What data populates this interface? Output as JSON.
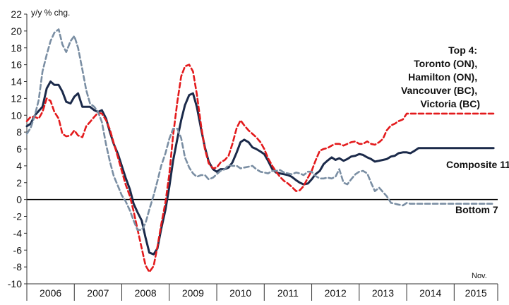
{
  "chart_data": {
    "type": "line",
    "title": "",
    "ylabel": "y/y % chg.",
    "xlabel": "",
    "ylim": [
      -10,
      22
    ],
    "yticks": [
      22,
      20,
      18,
      16,
      14,
      12,
      10,
      8,
      6,
      4,
      2,
      0,
      -2,
      -4,
      -6,
      -8,
      -10
    ],
    "xlim": [
      2006.0,
      2015.917
    ],
    "year_labels": [
      "2006",
      "2007",
      "2008",
      "2009",
      "2010",
      "2011",
      "2012",
      "2013",
      "2014",
      "2015"
    ],
    "end_note": "Nov.",
    "zero_line": true,
    "grid": false,
    "annotations": [
      {
        "lines": [
          "Top 4:",
          "Toronto (ON),",
          "Hamilton (ON),",
          "Vancouver (BC),",
          "Victoria (BC)"
        ],
        "series": "Top 4"
      },
      {
        "lines": [
          "Composite 11"
        ],
        "series": "Composite 11"
      },
      {
        "lines": [
          "Bottom 7"
        ],
        "series": "Bottom 7"
      }
    ],
    "series": [
      {
        "name": "Composite 11",
        "color": "#1b2a4a",
        "style": "solid",
        "x": [
          2006.0,
          2006.08,
          2006.17,
          2006.25,
          2006.33,
          2006.42,
          2006.5,
          2006.58,
          2006.67,
          2006.75,
          2006.83,
          2006.92,
          2007.0,
          2007.08,
          2007.17,
          2007.25,
          2007.33,
          2007.42,
          2007.5,
          2007.58,
          2007.67,
          2007.75,
          2007.83,
          2007.92,
          2008.0,
          2008.08,
          2008.17,
          2008.25,
          2008.33,
          2008.42,
          2008.5,
          2008.58,
          2008.67,
          2008.75,
          2008.83,
          2008.92,
          2009.0,
          2009.08,
          2009.17,
          2009.25,
          2009.33,
          2009.42,
          2009.5,
          2009.58,
          2009.67,
          2009.75,
          2009.83,
          2009.92,
          2010.0,
          2010.08,
          2010.17,
          2010.25,
          2010.33,
          2010.42,
          2010.5,
          2010.58,
          2010.67,
          2010.75,
          2010.83,
          2010.92,
          2011.0,
          2011.08,
          2011.17,
          2011.25,
          2011.33,
          2011.42,
          2011.5,
          2011.58,
          2011.67,
          2011.75,
          2011.83,
          2011.92,
          2012.0,
          2012.08,
          2012.17,
          2012.25,
          2012.33,
          2012.42,
          2012.5,
          2012.58,
          2012.67,
          2012.75,
          2012.83,
          2012.92,
          2013.0,
          2013.08,
          2013.17,
          2013.25,
          2013.33,
          2013.42,
          2013.5,
          2013.58,
          2013.67,
          2013.75,
          2013.83,
          2013.92,
          2014.0,
          2014.08,
          2014.17,
          2014.25,
          2014.33,
          2014.42,
          2014.5,
          2014.58,
          2014.67,
          2014.75,
          2014.83,
          2014.92,
          2015.0,
          2015.08,
          2015.17,
          2015.25,
          2015.33,
          2015.42,
          2015.5,
          2015.58,
          2015.67,
          2015.75,
          2015.83
        ],
        "y": [
          8.7,
          9.0,
          10.0,
          10.5,
          11.0,
          13.2,
          14.0,
          13.6,
          13.6,
          12.8,
          11.6,
          11.4,
          12.2,
          12.6,
          11.0,
          11.0,
          11.0,
          10.6,
          10.4,
          10.6,
          9.6,
          8.0,
          6.6,
          5.4,
          4.0,
          2.6,
          1.2,
          -0.5,
          -1.5,
          -2.5,
          -4.5,
          -6.3,
          -6.5,
          -5.8,
          -3.5,
          -1.2,
          1.5,
          4.6,
          7.2,
          9.4,
          11.2,
          12.4,
          12.6,
          11.0,
          8.4,
          6.2,
          4.5,
          3.6,
          3.3,
          3.6,
          3.6,
          3.8,
          4.4,
          5.6,
          6.8,
          7.1,
          6.8,
          6.2,
          6.0,
          5.7,
          5.4,
          4.6,
          3.6,
          3.2,
          3.1,
          3.0,
          2.9,
          2.7,
          2.3,
          2.0,
          1.8,
          1.9,
          2.4,
          3.0,
          3.4,
          4.2,
          4.6,
          5.0,
          4.7,
          4.9,
          4.6,
          4.8,
          5.1,
          5.2,
          5.4,
          5.3,
          5.0,
          4.8,
          4.5,
          4.6,
          4.7,
          4.8,
          5.1,
          5.2,
          5.5,
          5.6,
          5.6,
          5.5,
          5.8,
          6.1,
          6.1,
          6.1,
          6.1,
          6.1,
          6.1,
          6.1,
          6.1,
          6.1,
          6.1,
          6.1,
          6.1,
          6.1,
          6.1,
          6.1,
          6.1,
          6.1,
          6.1,
          6.1,
          6.1
        ]
      },
      {
        "name": "Top 4",
        "color": "#e31a1c",
        "style": "dashed",
        "x": [
          2006.0,
          2006.08,
          2006.17,
          2006.25,
          2006.33,
          2006.42,
          2006.5,
          2006.58,
          2006.67,
          2006.75,
          2006.83,
          2006.92,
          2007.0,
          2007.08,
          2007.17,
          2007.25,
          2007.33,
          2007.42,
          2007.5,
          2007.58,
          2007.67,
          2007.75,
          2007.83,
          2007.92,
          2008.0,
          2008.08,
          2008.17,
          2008.25,
          2008.33,
          2008.42,
          2008.5,
          2008.58,
          2008.67,
          2008.75,
          2008.83,
          2008.92,
          2009.0,
          2009.08,
          2009.17,
          2009.25,
          2009.33,
          2009.42,
          2009.5,
          2009.58,
          2009.67,
          2009.75,
          2009.83,
          2009.92,
          2010.0,
          2010.08,
          2010.17,
          2010.25,
          2010.33,
          2010.42,
          2010.5,
          2010.58,
          2010.67,
          2010.75,
          2010.83,
          2010.92,
          2011.0,
          2011.08,
          2011.17,
          2011.25,
          2011.33,
          2011.42,
          2011.5,
          2011.58,
          2011.67,
          2011.75,
          2011.83,
          2011.92,
          2012.0,
          2012.08,
          2012.17,
          2012.25,
          2012.33,
          2012.42,
          2012.5,
          2012.58,
          2012.67,
          2012.75,
          2012.83,
          2012.92,
          2013.0,
          2013.08,
          2013.17,
          2013.25,
          2013.33,
          2013.42,
          2013.5,
          2013.58,
          2013.67,
          2013.75,
          2013.83,
          2013.92,
          2014.0,
          2014.08,
          2014.17,
          2014.25,
          2014.33,
          2014.42,
          2014.5,
          2014.58,
          2014.67,
          2014.75,
          2014.83,
          2014.92,
          2015.0,
          2015.08,
          2015.17,
          2015.25,
          2015.33,
          2015.42,
          2015.5,
          2015.58,
          2015.67,
          2015.75,
          2015.83
        ],
        "y": [
          9.3,
          9.8,
          9.8,
          9.6,
          10.4,
          12.0,
          11.7,
          10.4,
          9.6,
          7.8,
          7.5,
          7.6,
          8.2,
          7.6,
          7.4,
          8.7,
          9.2,
          9.8,
          10.3,
          10.2,
          9.4,
          8.3,
          6.7,
          5.0,
          3.4,
          1.8,
          0.4,
          -1.4,
          -3.5,
          -5.8,
          -7.8,
          -8.6,
          -7.9,
          -5.6,
          -3.0,
          -0.3,
          3.0,
          7.6,
          11.6,
          14.6,
          15.8,
          16.0,
          15.2,
          12.5,
          8.8,
          6.0,
          4.3,
          3.7,
          3.8,
          4.4,
          4.7,
          5.2,
          6.6,
          8.5,
          9.4,
          8.8,
          8.2,
          7.8,
          7.4,
          6.8,
          6.0,
          4.9,
          4.0,
          3.3,
          2.7,
          2.2,
          1.9,
          1.5,
          1.0,
          1.1,
          1.6,
          2.6,
          3.4,
          4.6,
          5.8,
          6.0,
          6.1,
          6.4,
          6.6,
          6.6,
          6.4,
          6.6,
          6.8,
          6.9,
          6.6,
          6.6,
          6.9,
          6.6,
          6.5,
          6.8,
          7.2,
          8.2,
          8.8,
          9.0,
          9.3,
          9.5,
          10.2,
          10.2,
          10.2,
          10.2,
          10.2,
          10.2,
          10.2,
          10.2,
          10.2,
          10.2,
          10.2,
          10.2,
          10.2,
          10.2,
          10.2,
          10.2,
          10.2,
          10.2,
          10.2,
          10.2,
          10.2,
          10.2,
          10.2
        ]
      },
      {
        "name": "Bottom 7",
        "color": "#7a8ea3",
        "style": "dashed",
        "x": [
          2006.0,
          2006.08,
          2006.17,
          2006.25,
          2006.33,
          2006.42,
          2006.5,
          2006.58,
          2006.67,
          2006.75,
          2006.83,
          2006.92,
          2007.0,
          2007.08,
          2007.17,
          2007.25,
          2007.33,
          2007.42,
          2007.5,
          2007.58,
          2007.67,
          2007.75,
          2007.83,
          2007.92,
          2008.0,
          2008.08,
          2008.17,
          2008.25,
          2008.33,
          2008.42,
          2008.5,
          2008.58,
          2008.67,
          2008.75,
          2008.83,
          2008.92,
          2009.0,
          2009.08,
          2009.17,
          2009.25,
          2009.33,
          2009.42,
          2009.5,
          2009.58,
          2009.67,
          2009.75,
          2009.83,
          2009.92,
          2010.0,
          2010.08,
          2010.17,
          2010.25,
          2010.33,
          2010.42,
          2010.5,
          2010.58,
          2010.67,
          2010.75,
          2010.83,
          2010.92,
          2011.0,
          2011.08,
          2011.17,
          2011.25,
          2011.33,
          2011.42,
          2011.5,
          2011.58,
          2011.67,
          2011.75,
          2011.83,
          2011.92,
          2012.0,
          2012.08,
          2012.17,
          2012.25,
          2012.33,
          2012.42,
          2012.5,
          2012.58,
          2012.67,
          2012.75,
          2012.83,
          2012.92,
          2013.0,
          2013.08,
          2013.17,
          2013.25,
          2013.33,
          2013.42,
          2013.5,
          2013.58,
          2013.67,
          2013.75,
          2013.83,
          2013.92,
          2014.0,
          2014.08,
          2014.17,
          2014.25,
          2014.33,
          2014.42,
          2014.5,
          2014.58,
          2014.67,
          2014.75,
          2014.83,
          2014.92,
          2015.0,
          2015.08,
          2015.17,
          2015.25,
          2015.33,
          2015.42,
          2015.5,
          2015.58,
          2015.67,
          2015.75,
          2015.83
        ],
        "y": [
          7.8,
          8.5,
          10.0,
          11.8,
          15.2,
          17.2,
          18.8,
          19.8,
          20.2,
          18.4,
          17.5,
          18.8,
          19.4,
          18.0,
          15.4,
          13.0,
          11.4,
          11.0,
          10.4,
          9.2,
          6.5,
          4.5,
          2.8,
          1.6,
          0.5,
          -0.2,
          -1.3,
          -2.5,
          -3.6,
          -3.6,
          -2.8,
          -1.2,
          0.5,
          2.2,
          4.0,
          5.5,
          7.2,
          8.4,
          8.4,
          7.3,
          5.0,
          3.8,
          3.1,
          2.7,
          2.9,
          2.9,
          2.4,
          2.6,
          3.0,
          3.4,
          3.6,
          4.1,
          4.0,
          4.0,
          3.7,
          3.8,
          3.9,
          4.0,
          3.6,
          3.3,
          3.2,
          3.1,
          3.4,
          3.4,
          3.5,
          3.2,
          3.1,
          3.0,
          3.2,
          3.1,
          2.9,
          3.3,
          3.3,
          2.8,
          2.5,
          2.5,
          2.6,
          2.5,
          2.7,
          3.6,
          2.0,
          1.8,
          2.4,
          3.0,
          3.3,
          3.4,
          3.1,
          2.0,
          1.0,
          1.4,
          0.9,
          0.4,
          -0.4,
          -0.5,
          -0.6,
          -0.7,
          -0.4,
          -0.5,
          -0.5,
          -0.5,
          -0.5,
          -0.5,
          -0.5,
          -0.5,
          -0.5,
          -0.5,
          -0.5,
          -0.5,
          -0.5,
          -0.5,
          -0.5,
          -0.5,
          -0.5,
          -0.5,
          -0.5,
          -0.5,
          -0.5,
          -0.5,
          -0.5
        ]
      }
    ]
  }
}
